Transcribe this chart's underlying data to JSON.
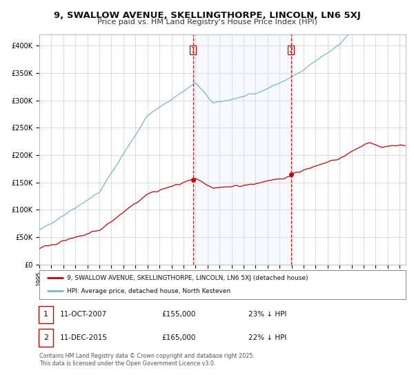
{
  "title": "9, SWALLOW AVENUE, SKELLINGTHORPE, LINCOLN, LN6 5XJ",
  "subtitle": "Price paid vs. HM Land Registry's House Price Index (HPI)",
  "ylabel_ticks": [
    "£0",
    "£50K",
    "£100K",
    "£150K",
    "£200K",
    "£250K",
    "£300K",
    "£350K",
    "£400K"
  ],
  "ytick_values": [
    0,
    50000,
    100000,
    150000,
    200000,
    250000,
    300000,
    350000,
    400000
  ],
  "ylim": [
    0,
    420000
  ],
  "hpi_color": "#7ab3d4",
  "price_color": "#cc0000",
  "vline_color": "#cc0000",
  "shade_color": "#ddeeff",
  "marker1_year": 2007.79,
  "marker2_year": 2015.95,
  "marker1_price": 155000,
  "marker2_price": 165000,
  "legend_line1": "9, SWALLOW AVENUE, SKELLINGTHORPE, LINCOLN, LN6 5XJ (detached house)",
  "legend_line2": "HPI: Average price, detached house, North Kesteven",
  "annotation1_label": "1",
  "annotation1_date": "11-OCT-2007",
  "annotation1_price": "£155,000",
  "annotation1_pct": "23% ↓ HPI",
  "annotation2_label": "2",
  "annotation2_date": "11-DEC-2015",
  "annotation2_price": "£165,000",
  "annotation2_pct": "22% ↓ HPI",
  "footnote": "Contains HM Land Registry data © Crown copyright and database right 2025.\nThis data is licensed under the Open Government Licence v3.0.",
  "background_color": "#ffffff",
  "grid_color": "#cccccc",
  "xlim_start": 1995,
  "xlim_end": 2025.5
}
